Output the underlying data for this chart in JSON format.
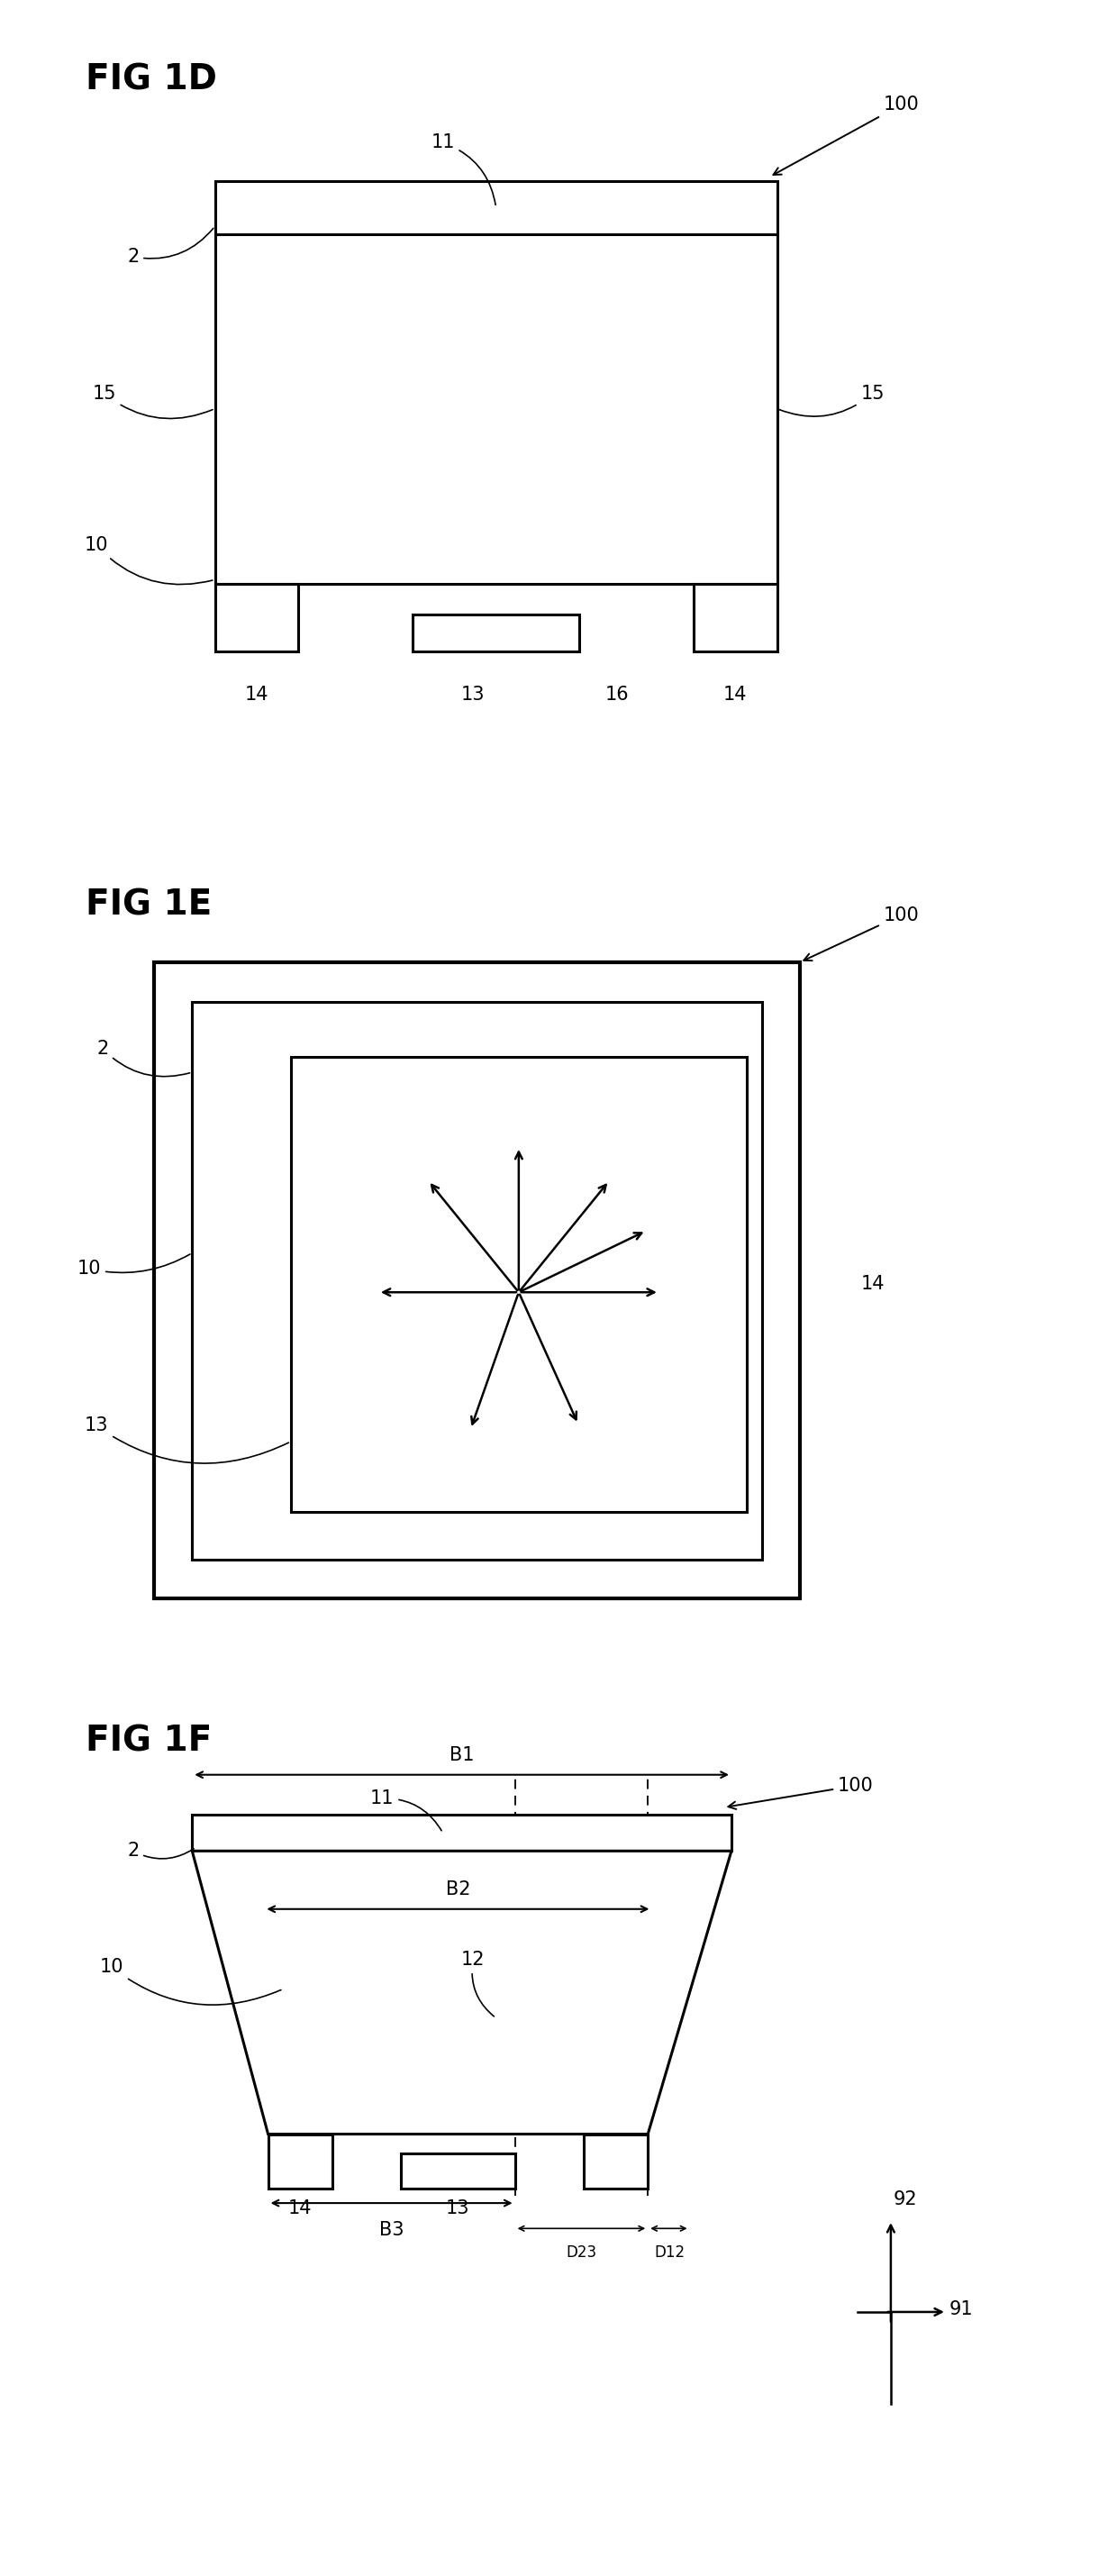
{
  "fig_title_1d": "FIG 1D",
  "fig_title_1e": "FIG 1E",
  "fig_title_1f": "FIG 1F",
  "bg_color": "#ffffff",
  "line_color": "#000000",
  "lw": 2.2,
  "lfs": 15,
  "tfs": 28
}
